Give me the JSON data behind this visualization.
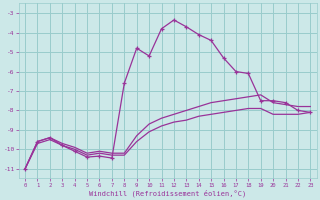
{
  "xlabel": "Windchill (Refroidissement éolien,°C)",
  "bg_color": "#cce8e8",
  "grid_color": "#99cccc",
  "line_color": "#993399",
  "xlim": [
    -0.5,
    23.5
  ],
  "ylim": [
    -11.5,
    -2.5
  ],
  "yticks": [
    -11,
    -10,
    -9,
    -8,
    -7,
    -6,
    -5,
    -4,
    -3
  ],
  "xticks": [
    0,
    1,
    2,
    3,
    4,
    5,
    6,
    7,
    8,
    9,
    10,
    11,
    12,
    13,
    14,
    15,
    16,
    17,
    18,
    19,
    20,
    21,
    22,
    23
  ],
  "line_smooth1_x": [
    0,
    1,
    2,
    3,
    4,
    5,
    6,
    7,
    8,
    9,
    10,
    11,
    12,
    13,
    14,
    15,
    16,
    17,
    18,
    19,
    20,
    21,
    22,
    23
  ],
  "line_smooth1_y": [
    -11.0,
    -9.7,
    -9.5,
    -9.8,
    -10.0,
    -10.3,
    -10.2,
    -10.3,
    -10.3,
    -9.6,
    -9.1,
    -8.8,
    -8.6,
    -8.5,
    -8.3,
    -8.2,
    -8.1,
    -8.0,
    -7.9,
    -7.9,
    -8.2,
    -8.2,
    -8.2,
    -8.1
  ],
  "line_smooth2_x": [
    0,
    1,
    2,
    3,
    4,
    5,
    6,
    7,
    8,
    9,
    10,
    11,
    12,
    13,
    14,
    15,
    16,
    17,
    18,
    19,
    20,
    21,
    22,
    23
  ],
  "line_smooth2_y": [
    -11.0,
    -9.6,
    -9.4,
    -9.7,
    -9.9,
    -10.2,
    -10.1,
    -10.2,
    -10.2,
    -9.3,
    -8.7,
    -8.4,
    -8.2,
    -8.0,
    -7.8,
    -7.6,
    -7.5,
    -7.4,
    -7.3,
    -7.2,
    -7.6,
    -7.7,
    -7.8,
    -7.8
  ],
  "line_marker_x": [
    0,
    1,
    2,
    3,
    4,
    5,
    6,
    7,
    8,
    9,
    10,
    11,
    12,
    13,
    14,
    15,
    16,
    17,
    18,
    19,
    20,
    21,
    22,
    23
  ],
  "line_marker_y": [
    -11.0,
    -9.6,
    -9.4,
    -9.8,
    -10.1,
    -10.4,
    -10.35,
    -10.45,
    -6.6,
    -4.8,
    -5.2,
    -3.8,
    -3.35,
    -3.7,
    -4.1,
    -4.4,
    -5.3,
    -6.0,
    -6.1,
    -7.5,
    -7.5,
    -7.6,
    -8.0,
    -8.1
  ]
}
